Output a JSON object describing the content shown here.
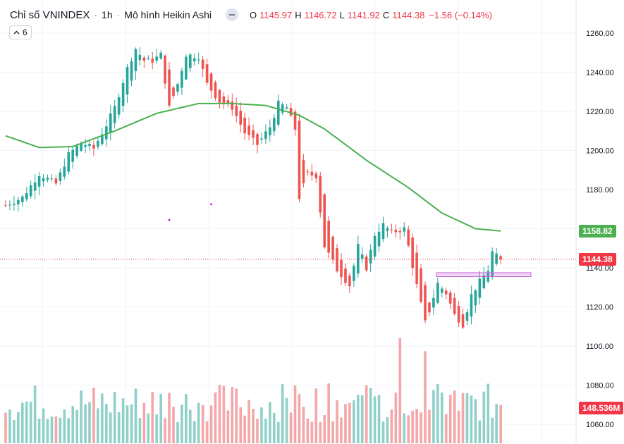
{
  "header": {
    "title": "Chỉ số VNINDEX",
    "interval": "1h",
    "chart_style": "Mô hình Heikin Ashi",
    "ohlc": {
      "o_label": "O",
      "o_value": "1145.97",
      "h_label": "H",
      "h_value": "1146.72",
      "l_label": "L",
      "l_value": "1141.92",
      "c_label": "C",
      "c_value": "1144.38",
      "change": "−1.56 (−0.14%)"
    }
  },
  "indicator_count": "6",
  "price_labels": {
    "ma": "1158.82",
    "last": "1144.38",
    "volume": "148.536M"
  },
  "colors": {
    "up": "#26a69a",
    "down": "#ef5350",
    "up_volume": "#8fd0c8",
    "down_volume": "#f4a6a8",
    "ma_line": "#4caf50",
    "last_price_line": "#f23645",
    "zone": "#c864dc"
  },
  "chart_data": {
    "type": "candlestick",
    "yaxis_ticks": [
      "1260.00",
      "1240.00",
      "1220.00",
      "1200.00",
      "1180.00",
      "1160.00",
      "1140.00",
      "1120.00",
      "1100.00",
      "1080.00",
      "1060.00"
    ],
    "ylim": [
      1056,
      1268
    ],
    "moving_average_last": 1158.82,
    "last_close": 1144.38,
    "last_volume": "148.536M",
    "price_path": [
      [
        0,
        1172
      ],
      [
        4,
        1176
      ],
      [
        8,
        1188
      ],
      [
        12,
        1183
      ],
      [
        15,
        1198
      ],
      [
        18,
        1204
      ],
      [
        21,
        1201
      ],
      [
        24,
        1213
      ],
      [
        26,
        1222
      ],
      [
        29,
        1242
      ],
      [
        31,
        1252
      ],
      [
        33,
        1246
      ],
      [
        35,
        1246
      ],
      [
        37,
        1249
      ],
      [
        39,
        1222
      ],
      [
        41,
        1234
      ],
      [
        43,
        1249
      ],
      [
        46,
        1248
      ],
      [
        48,
        1234
      ],
      [
        51,
        1225
      ],
      [
        54,
        1222
      ],
      [
        57,
        1209
      ],
      [
        60,
        1203
      ],
      [
        63,
        1212
      ],
      [
        65,
        1224
      ],
      [
        67,
        1222
      ],
      [
        69,
        1211
      ],
      [
        70,
        1176
      ],
      [
        72,
        1188
      ],
      [
        74,
        1187
      ],
      [
        76,
        1151
      ],
      [
        79,
        1139
      ],
      [
        82,
        1131
      ],
      [
        84,
        1151
      ],
      [
        86,
        1140
      ],
      [
        88,
        1157
      ],
      [
        90,
        1162
      ],
      [
        92,
        1158
      ],
      [
        95,
        1160
      ],
      [
        96,
        1151
      ],
      [
        98,
        1131
      ],
      [
        100,
        1112
      ],
      [
        101,
        1118
      ],
      [
        103,
        1132
      ],
      [
        105,
        1127
      ],
      [
        107,
        1116
      ],
      [
        109,
        1111
      ],
      [
        111,
        1126
      ],
      [
        113,
        1133
      ],
      [
        115,
        1139
      ],
      [
        116,
        1148
      ],
      [
        117,
        1146
      ],
      [
        118,
        1144.38
      ]
    ],
    "ma_path": [
      [
        0,
        1207.5
      ],
      [
        8,
        1201.5
      ],
      [
        16,
        1202
      ],
      [
        26,
        1210
      ],
      [
        36,
        1219
      ],
      [
        46,
        1224
      ],
      [
        54,
        1224
      ],
      [
        62,
        1223
      ],
      [
        70,
        1218
      ],
      [
        76,
        1211
      ],
      [
        86,
        1195
      ],
      [
        96,
        1181
      ],
      [
        104,
        1168
      ],
      [
        112,
        1160
      ],
      [
        118,
        1158.82
      ]
    ],
    "zone": {
      "price_low": 1135.5,
      "price_high": 1137.5,
      "start_index": 103,
      "extends_right": true
    },
    "markers": [
      {
        "index": 39,
        "price": 1164.5
      },
      {
        "index": 49,
        "price": 1172.5
      }
    ]
  }
}
